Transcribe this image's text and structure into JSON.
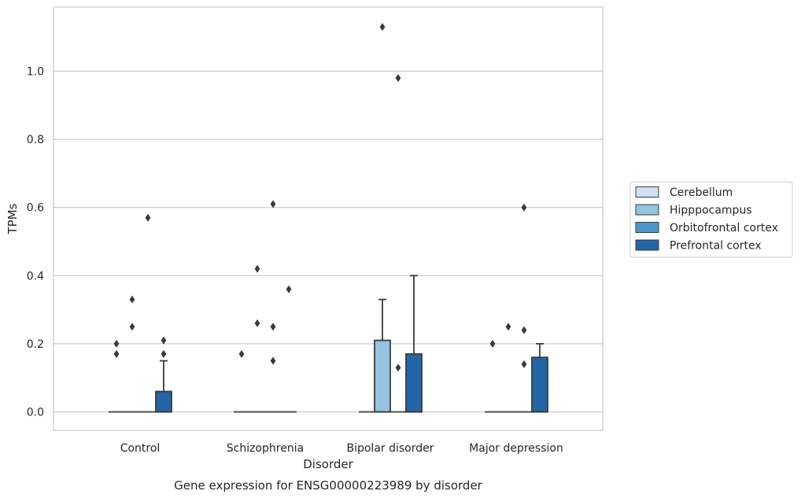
{
  "chart_data": {
    "type": "box",
    "title": "",
    "caption": "Gene expression for ENSG00000223989 by disorder",
    "xlabel": "Disorder",
    "ylabel": "TPMs",
    "ylim": [
      -0.055,
      1.19
    ],
    "yticks": [
      "0.0",
      "0.2",
      "0.4",
      "0.6",
      "0.8",
      "1.0"
    ],
    "ytick_values": [
      0.0,
      0.2,
      0.4,
      0.6,
      0.8,
      1.0
    ],
    "grid": "horizontal",
    "legend_position": "right",
    "categories": [
      "Control",
      "Schizophrenia",
      "Bipolar disorder",
      "Major depression"
    ],
    "series": [
      {
        "name": "Cerebellum",
        "color": "#d0e1f2",
        "boxes": [
          {
            "q1": 0,
            "median": 0,
            "q3": 0,
            "whisker_low": 0,
            "whisker_high": 0,
            "outliers": [
              0.2,
              0.17
            ]
          },
          {
            "q1": 0,
            "median": 0,
            "q3": 0,
            "whisker_low": 0,
            "whisker_high": 0,
            "outliers": [
              0.17
            ]
          },
          {
            "q1": 0,
            "median": 0,
            "q3": 0,
            "whisker_low": 0,
            "whisker_high": 0,
            "outliers": []
          },
          {
            "q1": 0,
            "median": 0,
            "q3": 0,
            "whisker_low": 0,
            "whisker_high": 0,
            "outliers": [
              0.2
            ]
          }
        ]
      },
      {
        "name": "Hipppocampus",
        "color": "#94c4df",
        "boxes": [
          {
            "q1": 0,
            "median": 0,
            "q3": 0,
            "whisker_low": 0,
            "whisker_high": 0,
            "outliers": [
              0.33,
              0.25
            ]
          },
          {
            "q1": 0,
            "median": 0,
            "q3": 0,
            "whisker_low": 0,
            "whisker_high": 0,
            "outliers": [
              0.42,
              0.26
            ]
          },
          {
            "q1": 0,
            "median": 0,
            "q3": 0.21,
            "whisker_low": 0,
            "whisker_high": 0.33,
            "outliers": [
              1.13
            ]
          },
          {
            "q1": 0,
            "median": 0,
            "q3": 0,
            "whisker_low": 0,
            "whisker_high": 0,
            "outliers": [
              0.25
            ]
          }
        ]
      },
      {
        "name": "Orbitofrontal cortex",
        "color": "#4a98c9",
        "boxes": [
          {
            "q1": 0,
            "median": 0,
            "q3": 0,
            "whisker_low": 0,
            "whisker_high": 0,
            "outliers": [
              0.57
            ]
          },
          {
            "q1": 0,
            "median": 0,
            "q3": 0,
            "whisker_low": 0,
            "whisker_high": 0,
            "outliers": [
              0.61,
              0.25,
              0.15
            ]
          },
          {
            "q1": 0,
            "median": 0,
            "q3": 0,
            "whisker_low": 0,
            "whisker_high": 0,
            "outliers": [
              0.98,
              0.13
            ]
          },
          {
            "q1": 0,
            "median": 0,
            "q3": 0,
            "whisker_low": 0,
            "whisker_high": 0,
            "outliers": [
              0.6,
              0.24,
              0.14
            ]
          }
        ]
      },
      {
        "name": "Prefrontal cortex",
        "color": "#2366a8",
        "boxes": [
          {
            "q1": 0,
            "median": 0,
            "q3": 0.06,
            "whisker_low": 0,
            "whisker_high": 0.15,
            "outliers": [
              0.21,
              0.17
            ]
          },
          {
            "q1": 0,
            "median": 0,
            "q3": 0,
            "whisker_low": 0,
            "whisker_high": 0,
            "outliers": [
              0.36
            ]
          },
          {
            "q1": 0,
            "median": 0,
            "q3": 0.17,
            "whisker_low": 0,
            "whisker_high": 0.4,
            "outliers": []
          },
          {
            "q1": 0,
            "median": 0,
            "q3": 0.16,
            "whisker_low": 0,
            "whisker_high": 0.2,
            "outliers": []
          }
        ]
      }
    ]
  }
}
